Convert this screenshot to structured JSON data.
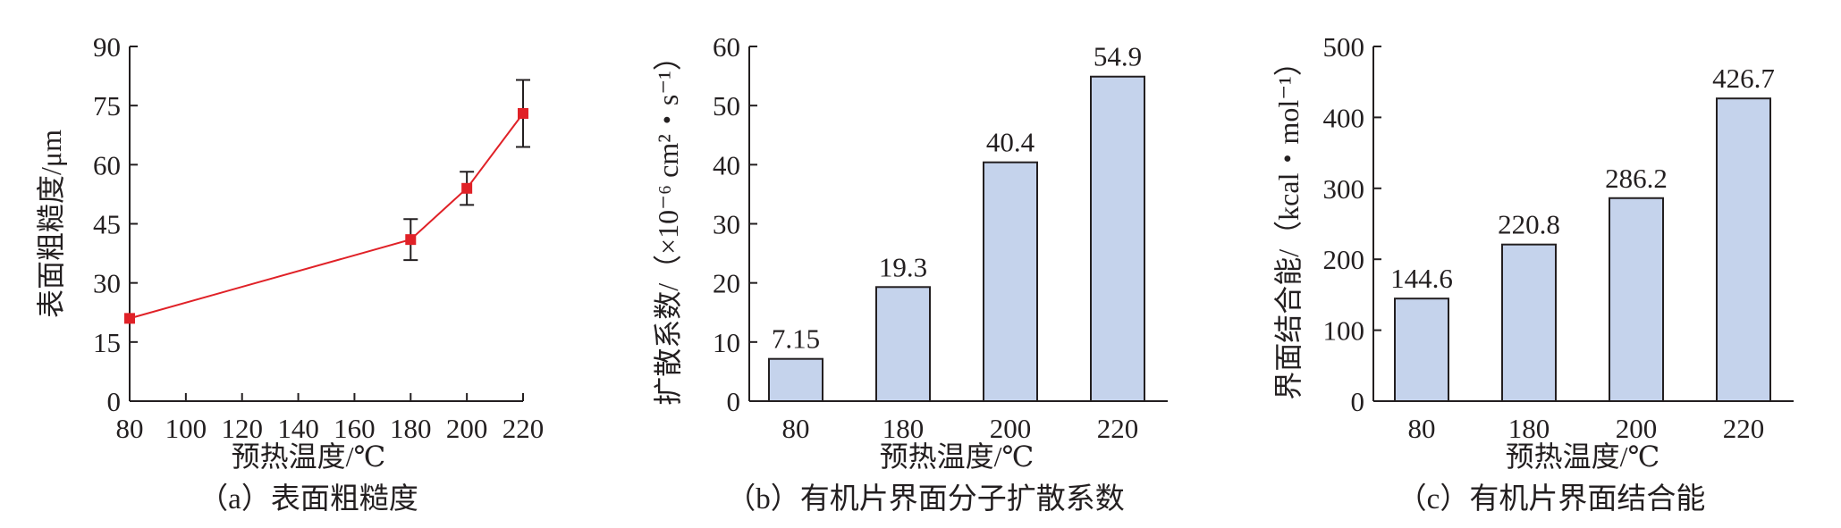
{
  "chart_data": [
    {
      "type": "line",
      "caption": "（a）表面粗糙度",
      "xlabel": "预热温度/℃",
      "ylabel": "表面粗糙度/μm",
      "xlim": [
        80,
        220
      ],
      "ylim": [
        0,
        90
      ],
      "xticks": [
        "80",
        "100",
        "120",
        "140",
        "160",
        "180",
        "200",
        "220"
      ],
      "yticks": [
        "0",
        "15",
        "30",
        "45",
        "60",
        "75",
        "90"
      ],
      "series": [
        {
          "x": [
            80,
            180,
            200,
            220
          ],
          "y": [
            21,
            41,
            54,
            73
          ],
          "error": [
            0,
            5.2,
            4.2,
            8.5
          ],
          "color": "#e02127",
          "marker": "square"
        }
      ],
      "grid": false
    },
    {
      "type": "bar",
      "caption": "（b）有机片界面分子扩散系数",
      "xlabel": "预热温度/℃",
      "ylabel": "扩散系数/（×10⁻⁶ cm²・s⁻¹）",
      "categories": [
        "80",
        "180",
        "200",
        "220"
      ],
      "values": [
        7.15,
        19.3,
        40.4,
        54.9
      ],
      "value_labels": [
        "7.15",
        "19.3",
        "40.4",
        "54.9"
      ],
      "ylim": [
        0,
        60
      ],
      "yticks": [
        "0",
        "10",
        "20",
        "30",
        "40",
        "50",
        "60"
      ],
      "bar_color": "#c5d3ec",
      "grid": false
    },
    {
      "type": "bar",
      "caption": "（c）有机片界面结合能",
      "xlabel": "预热温度/℃",
      "ylabel": "界面结合能/（kcal・mol⁻¹）",
      "categories": [
        "80",
        "180",
        "200",
        "220"
      ],
      "values": [
        144.6,
        220.8,
        286.2,
        426.7
      ],
      "value_labels": [
        "144.6",
        "220.8",
        "286.2",
        "426.7"
      ],
      "ylim": [
        0,
        500
      ],
      "yticks": [
        "0",
        "100",
        "200",
        "300",
        "400",
        "500"
      ],
      "bar_color": "#c5d3ec",
      "grid": false
    }
  ]
}
